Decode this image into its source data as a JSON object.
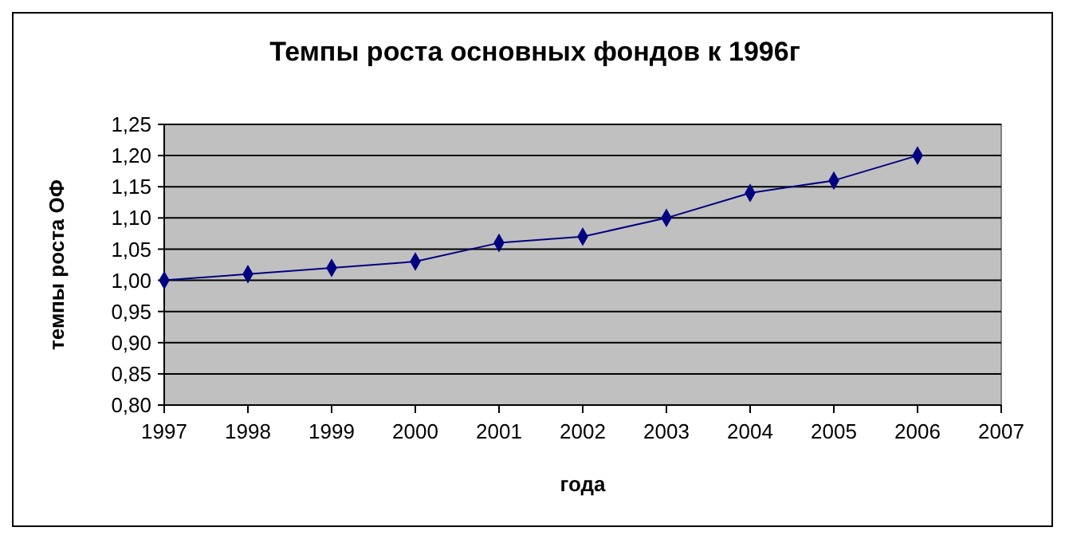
{
  "chart_data": {
    "type": "line",
    "title": "Темпы роста основных фондов к 1996г",
    "xlabel": "года",
    "ylabel": "темпы роста ОФ",
    "x": [
      1997,
      1998,
      1999,
      2000,
      2001,
      2002,
      2003,
      2004,
      2005,
      2006
    ],
    "series": [
      {
        "color": "#000080",
        "values": [
          1.0,
          1.01,
          1.02,
          1.03,
          1.06,
          1.07,
          1.1,
          1.14,
          1.16,
          1.2
        ]
      }
    ],
    "xlim": [
      1997,
      2007
    ],
    "xticks": [
      1997,
      1998,
      1999,
      2000,
      2001,
      2002,
      2003,
      2004,
      2005,
      2006,
      2007
    ],
    "ylim": [
      0.8,
      1.25
    ],
    "yticks": [
      {
        "value": 0.8,
        "label": "0,80"
      },
      {
        "value": 0.85,
        "label": "0,85"
      },
      {
        "value": 0.9,
        "label": "0,90"
      },
      {
        "value": 0.95,
        "label": "0,95"
      },
      {
        "value": 1.0,
        "label": "1,00"
      },
      {
        "value": 1.05,
        "label": "1,05"
      },
      {
        "value": 1.1,
        "label": "1,10"
      },
      {
        "value": 1.15,
        "label": "1,15"
      },
      {
        "value": 1.2,
        "label": "1,20"
      },
      {
        "value": 1.25,
        "label": "1,25"
      }
    ],
    "grid": "y",
    "marker": "diamond",
    "line_style": "solid"
  }
}
